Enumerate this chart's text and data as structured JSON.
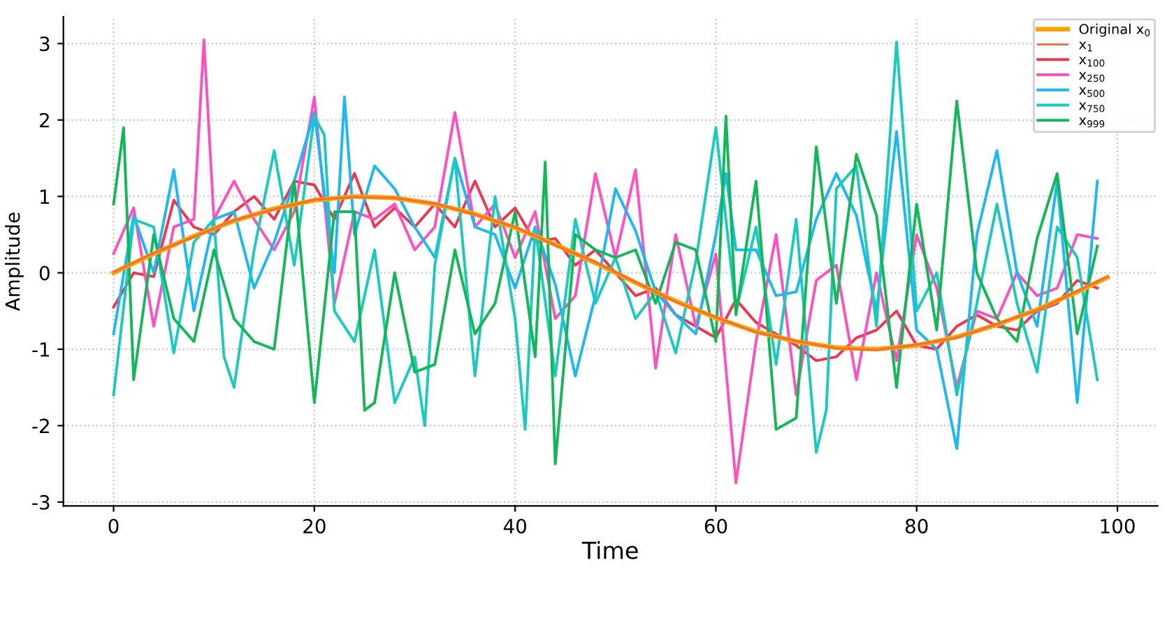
{
  "chart_data": {
    "type": "line",
    "xlabel": "Time",
    "ylabel": "Amplitude",
    "xlim": [
      -5,
      104
    ],
    "ylim": [
      -3.05,
      3.35
    ],
    "xticks": [
      0,
      20,
      40,
      60,
      80,
      100
    ],
    "yticks": [
      -3,
      -2,
      -1,
      0,
      1,
      2,
      3
    ],
    "grid": true,
    "legend": "top right",
    "line_style": "solid",
    "marker": "none",
    "series": [
      {
        "name": "Original x$_{0}$",
        "color": "#ffa500",
        "x": [
          0,
          4,
          8,
          12,
          16,
          20,
          24,
          28,
          32,
          36,
          40,
          44,
          48,
          52,
          56,
          60,
          64,
          68,
          72,
          76,
          80,
          84,
          88,
          92,
          96,
          99
        ],
        "values": [
          0,
          0.25,
          0.48,
          0.68,
          0.84,
          0.95,
          1.0,
          0.98,
          0.9,
          0.77,
          0.59,
          0.37,
          0.13,
          -0.13,
          -0.37,
          -0.59,
          -0.77,
          -0.9,
          -0.98,
          -1.0,
          -0.95,
          -0.84,
          -0.68,
          -0.48,
          -0.25,
          -0.06
        ]
      },
      {
        "name": "x$_{1}$",
        "color": "#f26b3a",
        "x": [
          0,
          4,
          8,
          12,
          16,
          20,
          24,
          28,
          32,
          36,
          40,
          44,
          48,
          52,
          56,
          60,
          64,
          68,
          72,
          76,
          80,
          84,
          88,
          92,
          96,
          99
        ],
        "values": [
          0.01,
          0.26,
          0.47,
          0.69,
          0.83,
          0.96,
          0.99,
          0.98,
          0.91,
          0.76,
          0.6,
          0.36,
          0.14,
          -0.12,
          -0.38,
          -0.58,
          -0.78,
          -0.89,
          -0.99,
          -1.01,
          -0.94,
          -0.85,
          -0.67,
          -0.49,
          -0.24,
          -0.05
        ]
      },
      {
        "name": "x$_{100}$",
        "color": "#f2344f",
        "x": [
          0,
          2,
          4,
          6,
          8,
          10,
          12,
          14,
          16,
          18,
          20,
          22,
          24,
          26,
          28,
          30,
          32,
          34,
          36,
          38,
          40,
          42,
          44,
          46,
          48,
          50,
          52,
          54,
          56,
          58,
          60,
          62,
          64,
          66,
          68,
          70,
          72,
          74,
          76,
          78,
          80,
          82,
          84,
          86,
          88,
          90,
          92,
          94,
          96,
          98
        ],
        "values": [
          -0.45,
          0.0,
          -0.05,
          0.95,
          0.6,
          0.5,
          0.8,
          1.0,
          0.7,
          1.2,
          1.15,
          0.7,
          1.3,
          0.6,
          0.85,
          0.6,
          0.9,
          0.6,
          1.2,
          0.6,
          0.85,
          0.4,
          0.45,
          0.1,
          0.3,
          0.0,
          -0.3,
          -0.2,
          -0.55,
          -0.7,
          -0.85,
          -0.35,
          -0.65,
          -0.8,
          -0.95,
          -1.15,
          -1.1,
          -0.85,
          -0.75,
          -0.5,
          -0.95,
          -1.0,
          -0.7,
          -0.55,
          -0.7,
          -0.75,
          -0.5,
          -0.4,
          -0.1,
          -0.2
        ]
      },
      {
        "name": "x$_{250}$",
        "color": "#ff4fc0",
        "x": [
          0,
          2,
          4,
          6,
          8,
          9,
          10,
          12,
          14,
          16,
          18,
          20,
          22,
          24,
          26,
          28,
          30,
          32,
          34,
          36,
          38,
          40,
          42,
          44,
          46,
          48,
          50,
          52,
          54,
          56,
          58,
          60,
          62,
          64,
          66,
          68,
          70,
          72,
          74,
          76,
          78,
          80,
          82,
          84,
          86,
          88,
          90,
          92,
          94,
          96,
          98
        ],
        "values": [
          0.25,
          0.85,
          -0.7,
          0.6,
          0.7,
          3.05,
          0.7,
          1.2,
          0.7,
          0.3,
          0.8,
          2.3,
          -0.4,
          0.8,
          0.7,
          0.9,
          0.3,
          0.6,
          2.1,
          0.6,
          0.9,
          0.2,
          0.8,
          -0.6,
          -0.3,
          1.3,
          0.2,
          1.35,
          -1.25,
          0.5,
          -0.7,
          0.25,
          -2.75,
          -0.9,
          0.5,
          -1.6,
          -0.1,
          0.1,
          -1.4,
          0.0,
          -1.15,
          0.5,
          -0.2,
          -1.5,
          -0.5,
          -0.6,
          0.0,
          -0.3,
          -0.2,
          0.5,
          0.45
        ]
      },
      {
        "name": "x$_{500}$",
        "color": "#1ab8f7",
        "x": [
          0,
          2,
          4,
          6,
          8,
          10,
          12,
          14,
          16,
          18,
          20,
          22,
          23,
          24,
          26,
          28,
          30,
          32,
          34,
          36,
          38,
          40,
          42,
          44,
          46,
          48,
          50,
          52,
          54,
          56,
          58,
          60,
          61,
          62,
          64,
          66,
          68,
          70,
          72,
          74,
          76,
          78,
          80,
          82,
          84,
          86,
          88,
          90,
          92,
          94,
          96,
          98
        ],
        "values": [
          -0.8,
          0.75,
          0.0,
          1.35,
          -0.5,
          0.7,
          0.8,
          -0.2,
          0.4,
          1.2,
          2.1,
          0.0,
          2.3,
          0.5,
          1.4,
          1.1,
          0.6,
          0.2,
          1.5,
          0.6,
          0.5,
          -0.2,
          0.6,
          -0.15,
          -1.35,
          -0.3,
          1.1,
          0.55,
          -0.25,
          -0.55,
          -0.8,
          0.5,
          1.3,
          0.3,
          0.3,
          -0.3,
          -0.25,
          0.7,
          1.3,
          0.75,
          -0.5,
          1.85,
          -0.75,
          -1.0,
          -2.3,
          0.5,
          1.6,
          0.0,
          -0.7,
          1.2,
          -1.7,
          1.2
        ]
      },
      {
        "name": "x$_{750}$",
        "color": "#19cbbf",
        "x": [
          0,
          2,
          4,
          6,
          8,
          10,
          11,
          12,
          14,
          16,
          18,
          20,
          21,
          22,
          24,
          26,
          28,
          30,
          31,
          32,
          34,
          36,
          38,
          40,
          41,
          42,
          44,
          46,
          48,
          50,
          52,
          54,
          56,
          58,
          60,
          62,
          64,
          66,
          68,
          70,
          71,
          72,
          74,
          76,
          78,
          80,
          82,
          84,
          86,
          88,
          90,
          92,
          94,
          96,
          98
        ],
        "values": [
          -1.6,
          0.7,
          0.6,
          -1.05,
          0.4,
          0.7,
          -1.1,
          -1.5,
          0.3,
          1.6,
          0.1,
          2.05,
          1.8,
          -0.5,
          -0.9,
          0.3,
          -1.7,
          -1.1,
          -2.0,
          0.1,
          1.5,
          -1.35,
          1.0,
          -0.6,
          -2.05,
          0.6,
          -1.35,
          0.7,
          -0.4,
          0.2,
          -0.6,
          -0.25,
          -1.05,
          0.15,
          1.9,
          -0.5,
          0.6,
          -1.2,
          0.7,
          -2.35,
          -1.8,
          1.1,
          1.4,
          -0.7,
          3.02,
          -0.5,
          0.0,
          -1.6,
          -0.4,
          0.9,
          -0.4,
          -1.3,
          0.6,
          0.2,
          -1.4
        ]
      },
      {
        "name": "x$_{999}$",
        "color": "#10b856",
        "x": [
          0,
          1,
          2,
          4,
          6,
          8,
          10,
          12,
          14,
          16,
          18,
          20,
          22,
          24,
          25,
          26,
          28,
          30,
          32,
          34,
          36,
          38,
          40,
          42,
          43,
          44,
          46,
          48,
          50,
          52,
          54,
          56,
          58,
          60,
          61,
          62,
          64,
          66,
          68,
          70,
          72,
          74,
          76,
          78,
          80,
          82,
          84,
          86,
          88,
          90,
          92,
          94,
          96,
          98
        ],
        "values": [
          0.9,
          1.9,
          -1.4,
          0.5,
          -0.6,
          -0.9,
          0.3,
          -0.6,
          -0.9,
          -1.0,
          1.2,
          -1.7,
          0.8,
          0.8,
          -1.8,
          -1.7,
          0.0,
          -1.3,
          -1.2,
          0.3,
          -0.8,
          -0.4,
          0.8,
          -1.1,
          1.45,
          -2.5,
          0.5,
          0.3,
          0.2,
          0.3,
          -0.4,
          0.4,
          0.3,
          -0.9,
          2.05,
          -0.55,
          1.2,
          -2.05,
          -1.9,
          1.65,
          -0.4,
          1.55,
          0.75,
          -1.5,
          0.9,
          -0.75,
          2.25,
          0.0,
          -0.6,
          -0.9,
          0.45,
          1.3,
          -0.8,
          0.35
        ]
      }
    ]
  }
}
